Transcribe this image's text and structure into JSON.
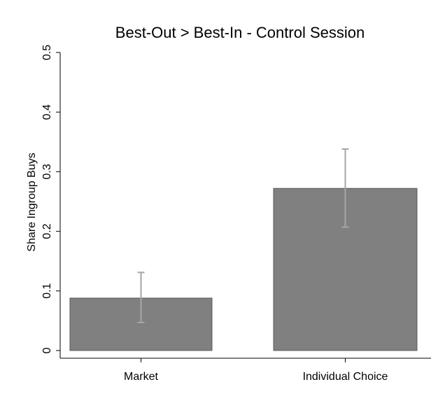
{
  "chart_data": {
    "type": "bar",
    "title": "Best-Out > Best-In - Control Session",
    "xlabel": "",
    "ylabel": "Share Ingroup Buys",
    "categories": [
      "Market",
      "Individual Choice"
    ],
    "values": [
      0.088,
      0.272
    ],
    "error_bars": {
      "lower": [
        0.047,
        0.207
      ],
      "upper": [
        0.131,
        0.338
      ]
    },
    "ylim": [
      0,
      0.5
    ],
    "yticks": [
      0,
      0.1,
      0.2,
      0.3,
      0.4,
      0.5
    ],
    "ytick_labels": [
      "0",
      "0.1",
      "0.2",
      "0.3",
      "0.4",
      "0.5"
    ],
    "grid": false,
    "bar_color": "#808080",
    "error_bar_color": "#a6a6a6",
    "axis_color": "#000000"
  }
}
